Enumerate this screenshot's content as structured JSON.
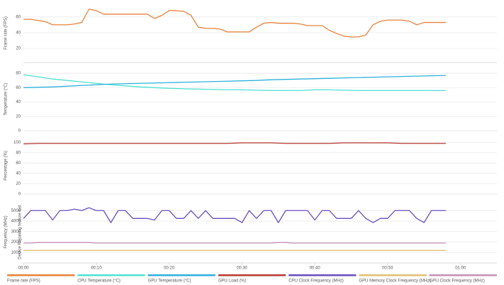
{
  "chart_data": [
    {
      "type": "line",
      "y_label": "Frame rate (FPS)",
      "xlim": [
        0,
        65
      ],
      "ylim": [
        2,
        77
      ],
      "yticks": [
        20,
        40,
        60
      ],
      "grid": true,
      "x": [
        0,
        1,
        2,
        3,
        4,
        5,
        6,
        7,
        8,
        9,
        10,
        11,
        12,
        13,
        14,
        15,
        16,
        17,
        18,
        19,
        20,
        21,
        22,
        23,
        24,
        25,
        26,
        27,
        28,
        29,
        30,
        31,
        32,
        33,
        34,
        35,
        36,
        37,
        38,
        39,
        40,
        41,
        42,
        43,
        44,
        45,
        46,
        47,
        48,
        49,
        50,
        51,
        52,
        53,
        54,
        55,
        56,
        57,
        58
      ],
      "series": [
        {
          "name": "Frame rate (FPS)",
          "color": "#e8823c",
          "values": [
            57,
            57,
            55.5,
            54,
            50,
            50,
            50,
            51,
            53,
            70,
            68,
            63.5,
            63.5,
            63.5,
            63.5,
            63.5,
            63.5,
            63.5,
            58,
            62,
            68,
            68,
            67,
            62,
            47,
            45.5,
            45.5,
            44.5,
            41,
            41,
            41,
            41,
            47,
            52,
            53,
            52,
            52,
            52,
            51,
            49,
            49,
            49,
            43,
            39,
            35.5,
            34.5,
            34.5,
            37,
            50,
            54.5,
            56,
            56,
            56,
            54.5,
            50,
            53,
            53,
            53,
            53
          ]
        }
      ]
    },
    {
      "type": "line",
      "y_label": "Temperature (°C)",
      "xlim": [
        0,
        65
      ],
      "ylim": [
        0,
        88
      ],
      "yticks": [
        0,
        20,
        40,
        60,
        80
      ],
      "grid": true,
      "x": [
        0,
        2,
        4,
        6,
        8,
        10,
        12,
        14,
        16,
        18,
        20,
        22,
        24,
        26,
        28,
        30,
        32,
        34,
        36,
        38,
        40,
        42,
        44,
        46,
        48,
        50,
        52,
        54,
        56,
        58
      ],
      "series": [
        {
          "name": "CPU Temperature (°C)",
          "color": "#4fe0d2",
          "values": [
            78,
            75,
            72,
            70,
            68,
            66,
            64,
            62.5,
            61,
            60,
            59,
            58.5,
            58,
            57.5,
            57,
            57,
            56.5,
            56,
            56,
            56,
            57,
            57,
            56.5,
            56,
            56,
            56,
            56,
            56,
            56,
            56
          ]
        },
        {
          "name": "GPU Temperature (°C)",
          "color": "#2fb0dc",
          "values": [
            60,
            60.5,
            61,
            62,
            63,
            64,
            65,
            65.5,
            66,
            66.5,
            67,
            67.5,
            68,
            68.5,
            69,
            69.5,
            70,
            71,
            71.5,
            72,
            72.5,
            73,
            73.5,
            74,
            74.5,
            75,
            75.5,
            76,
            76.5,
            77
          ]
        }
      ]
    },
    {
      "type": "line",
      "y_label": "Percentage (%)",
      "xlim": [
        0,
        65
      ],
      "ylim": [
        0,
        110
      ],
      "yticks": [
        0,
        20,
        40,
        60,
        80,
        100
      ],
      "grid": true,
      "x": [
        0,
        2,
        4,
        6,
        8,
        10,
        12,
        14,
        16,
        18,
        20,
        22,
        24,
        26,
        28,
        30,
        32,
        34,
        36,
        38,
        40,
        42,
        44,
        46,
        48,
        50,
        52,
        54,
        56,
        58
      ],
      "series": [
        {
          "name": "GPU Load (%)",
          "color": "#b83a32",
          "values": [
            97,
            98,
            98,
            98,
            98,
            98,
            98,
            98,
            98,
            98,
            98,
            98,
            98,
            98,
            98,
            99,
            99,
            99,
            98,
            98,
            98,
            98,
            99,
            99,
            99,
            99,
            98,
            98,
            98,
            98
          ]
        }
      ]
    },
    {
      "type": "line",
      "y_label": "Frequency (MHz)",
      "annotation": "Device Rejoining feature lost",
      "xlim": [
        0,
        65
      ],
      "ylim": [
        0,
        5900
      ],
      "yticks": [
        1000,
        2000,
        3000,
        4000,
        5000
      ],
      "grid": true,
      "xticks": [
        {
          "value": 0,
          "label": "00:00"
        },
        {
          "value": 10,
          "label": "00:10"
        },
        {
          "value": 20,
          "label": "00:20"
        },
        {
          "value": 30,
          "label": "00:30"
        },
        {
          "value": 40,
          "label": "00:40"
        },
        {
          "value": 50,
          "label": "00:50"
        },
        {
          "value": 60,
          "label": "01:00"
        }
      ],
      "x": [
        0,
        1,
        2,
        3,
        4,
        5,
        6,
        7,
        8,
        9,
        10,
        11,
        12,
        13,
        14,
        15,
        16,
        17,
        18,
        19,
        20,
        21,
        22,
        23,
        24,
        25,
        26,
        27,
        28,
        29,
        30,
        31,
        32,
        33,
        34,
        35,
        36,
        37,
        38,
        39,
        40,
        41,
        42,
        43,
        44,
        45,
        46,
        47,
        48,
        49,
        50,
        51,
        52,
        53,
        54,
        55,
        56,
        57,
        58
      ],
      "series": [
        {
          "name": "CPU Clock Frequency (MHz)",
          "color": "#6a4fbf",
          "values": [
            4250,
            5000,
            5000,
            5000,
            4100,
            5000,
            5000,
            5140,
            5000,
            5270,
            5000,
            5000,
            3850,
            5000,
            5000,
            4250,
            4250,
            4250,
            4100,
            5000,
            5000,
            4250,
            4250,
            5000,
            4250,
            5000,
            4250,
            4250,
            4250,
            4250,
            3850,
            5000,
            4250,
            5000,
            5000,
            3850,
            5000,
            5000,
            5000,
            5000,
            4100,
            5000,
            5000,
            4250,
            4250,
            4250,
            5000,
            4250,
            3850,
            4250,
            4250,
            5000,
            5000,
            5000,
            4250,
            3850,
            5000,
            5000,
            5000
          ]
        },
        {
          "name": "GPU Memory Clock Frequency (MHz)",
          "color": "#e0c070",
          "values": [
            1200,
            1200,
            1200,
            1200,
            1200,
            1200,
            1200,
            1200,
            1200,
            1200,
            1200,
            1200,
            1200,
            1200,
            1200,
            1200,
            1200,
            1200,
            1200,
            1200,
            1200,
            1200,
            1200,
            1200,
            1200,
            1200,
            1200,
            1200,
            1200,
            1200,
            1200,
            1200,
            1200,
            1200,
            1200,
            1200,
            1200,
            1200,
            1200,
            1200,
            1200,
            1200,
            1200,
            1200,
            1200,
            1200,
            1200,
            1200,
            1200,
            1200,
            1200,
            1200,
            1200,
            1200,
            1200,
            1200,
            1200,
            1200,
            1200
          ]
        },
        {
          "name": "GPU Clock Frequency (MHz)",
          "color": "#c590b8",
          "values": [
            1900,
            1900,
            1950,
            1950,
            1950,
            1950,
            1950,
            1950,
            1950,
            1950,
            1900,
            1900,
            1900,
            1900,
            1900,
            1900,
            1900,
            1900,
            1900,
            1900,
            1900,
            1900,
            1900,
            1900,
            1900,
            1900,
            1900,
            1900,
            1900,
            1900,
            1900,
            1900,
            1900,
            1900,
            1900,
            1950,
            1950,
            1900,
            1900,
            1900,
            1900,
            1900,
            1900,
            1900,
            1900,
            1900,
            1900,
            1900,
            1900,
            1900,
            1900,
            1900,
            1900,
            1900,
            1900,
            1900,
            1900,
            1900,
            1900
          ]
        }
      ]
    }
  ]
}
